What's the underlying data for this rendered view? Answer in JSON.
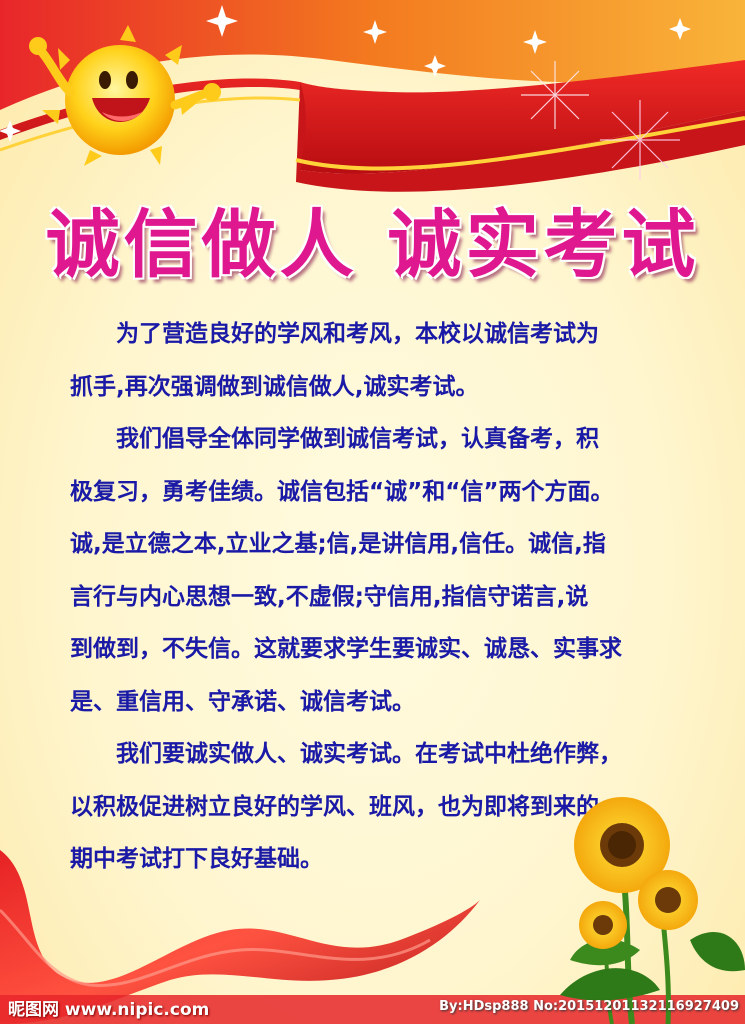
{
  "poster": {
    "title": "诚信做人  诚实考试",
    "paragraphs": [
      {
        "lines": [
          "为了营造良好的学风和考风，本校以诚信考试为",
          "抓手,再次强调做到诚信做人,诚实考试。"
        ]
      },
      {
        "lines": [
          "我们倡导全体同学做到诚信考试，认真备考，积",
          "极复习，勇考佳绩。诚信包括“诚”和“信”两个方面。",
          "诚,是立德之本,立业之基;信,是讲信用,信任。诚信,指",
          "言行与内心思想一致,不虚假;守信用,指信守诺言,说",
          "到做到，不失信。这就要求学生要诚实、诚恳、实事求",
          "是、重信用、守承诺、诚信考试。"
        ]
      },
      {
        "lines": [
          "我们要诚实做人、诚实考试。在考试中杜绝作弊，",
          "以积极促进树立良好的学风、班风，也为即将到来的",
          "期中考试打下良好基础。"
        ]
      }
    ],
    "colors": {
      "title": "#e0188f",
      "body_text": "#1a1aa6",
      "ribbon": "#d8121b",
      "background": "#fff6cf"
    },
    "decorations": [
      "sun-icon",
      "ribbon-banner",
      "firework-icon",
      "silk-ribbon",
      "sunflower-icon"
    ]
  },
  "watermark": {
    "left": "昵图网 www.nipic.com",
    "right": "By:HDsp888 No:20151201132116927409"
  }
}
